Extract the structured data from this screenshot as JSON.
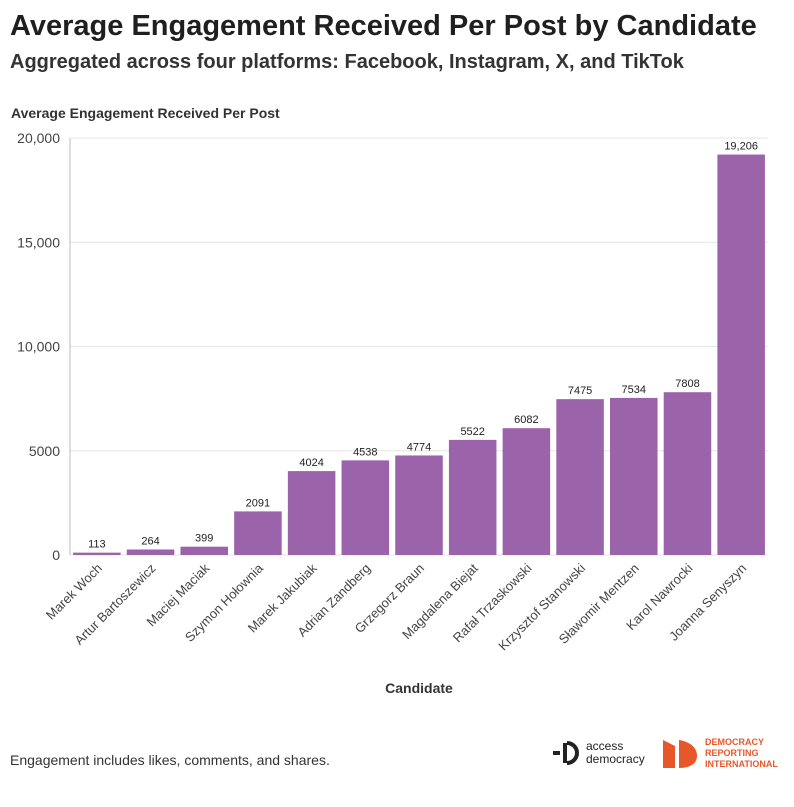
{
  "title": "Average Engagement Received Per Post by Candidate",
  "subtitle": "Aggregated across four platforms: Facebook, Instagram, X, and TikTok",
  "footnote": "Engagement includes likes, comments, and shares.",
  "logos": {
    "access_democracy_line1": "access",
    "access_democracy_line2": "democracy",
    "dri_line1": "DEMOCRACY",
    "dri_line2": "REPORTING",
    "dri_line3": "INTERNATIONAL"
  },
  "colors": {
    "bar": "#9a63aa",
    "grid": "#e6e6e6",
    "dri_orange": "#e8572a"
  },
  "chart_data": {
    "type": "bar",
    "title": "Average Engagement Received Per Post by Candidate",
    "subtitle": "Aggregated across four platforms: Facebook, Instagram, X, and TikTok",
    "xlabel": "Candidate",
    "ylabel": "Average Engagement Received Per Post",
    "ylim": [
      0,
      20000
    ],
    "yticks": [
      0,
      5000,
      10000,
      15000,
      20000
    ],
    "ytick_labels": [
      "0",
      "5000",
      "10,000",
      "15,000",
      "20,000"
    ],
    "grid": true,
    "categories": [
      "Marek Woch",
      "Artur Bartoszewicz",
      "Maciej Maciak",
      "Szymon Hołownia",
      "Marek Jakubiak",
      "Adrian Zandberg",
      "Grzegorz Braun",
      "Magdalena Biejat",
      "Rafał Trzaskowski",
      "Krzysztof Stanowski",
      "Sławomir Mentzen",
      "Karol Nawrocki",
      "Joanna Senyszyn"
    ],
    "values": [
      113,
      264,
      399,
      2091,
      4024,
      4538,
      4774,
      5522,
      6082,
      7475,
      7534,
      7808,
      19206
    ],
    "value_labels": [
      "113",
      "264",
      "399",
      "2091",
      "4024",
      "4538",
      "4774",
      "5522",
      "6082",
      "7475",
      "7534",
      "7808",
      "19,206"
    ]
  }
}
